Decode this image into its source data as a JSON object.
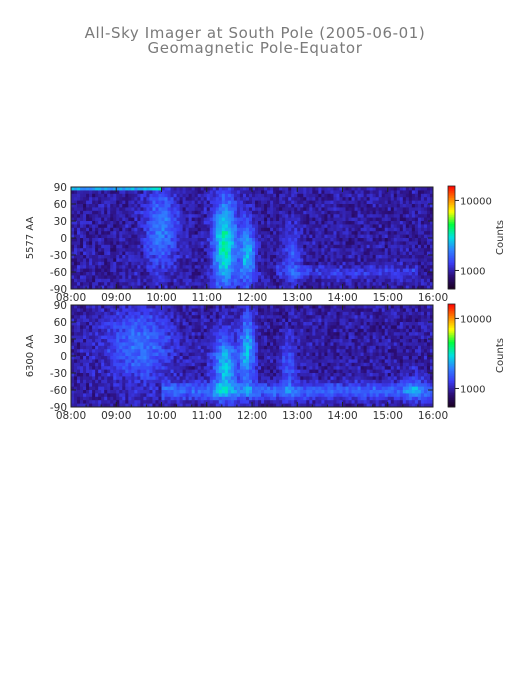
{
  "title": "All-Sky Imager at South Pole (2005-06-01)",
  "subtitle": "Geomagnetic Pole-Equator",
  "chart_data": [
    {
      "type": "heatmap",
      "ylabel": "5577 AA",
      "y_ticks": [
        90,
        60,
        30,
        0,
        -30,
        -60,
        -90
      ],
      "ylim": [
        -90,
        90
      ],
      "x_ticks": [
        "08:00",
        "09:00",
        "10:00",
        "11:00",
        "12:00",
        "13:00",
        "14:00",
        "15:00",
        "16:00"
      ],
      "xlim": [
        "08:00",
        "16:00"
      ],
      "colorbar": {
        "label": "Counts",
        "ticks": [
          "10000",
          "1000"
        ],
        "scale": "log"
      },
      "colormap": [
        "#1a0022",
        "#2c0e78",
        "#3b3cf4",
        "#2f80ff",
        "#00e0e0",
        "#00ff40",
        "#ffff00",
        "#ff8000",
        "#ff0000"
      ]
    },
    {
      "type": "heatmap",
      "ylabel": "6300 AA",
      "y_ticks": [
        90,
        60,
        30,
        0,
        -30,
        -60,
        -90
      ],
      "ylim": [
        -90,
        90
      ],
      "x_ticks": [
        "08:00",
        "09:00",
        "10:00",
        "11:00",
        "12:00",
        "13:00",
        "14:00",
        "15:00",
        "16:00"
      ],
      "xlim": [
        "08:00",
        "16:00"
      ],
      "colorbar": {
        "label": "Counts",
        "ticks": [
          "10000",
          "1000"
        ],
        "scale": "log"
      },
      "colormap": [
        "#1a0022",
        "#2c0e78",
        "#3b3cf4",
        "#2f80ff",
        "#00e0e0",
        "#00ff40",
        "#ffff00",
        "#ff8000",
        "#ff0000"
      ]
    }
  ]
}
